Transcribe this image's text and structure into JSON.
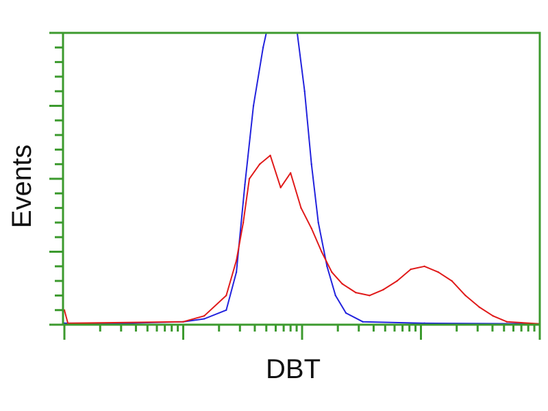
{
  "chart_data": {
    "type": "line",
    "title": "",
    "xlabel": "DBT",
    "ylabel": "Events",
    "xscale": "log",
    "xlim": [
      1,
      10000
    ],
    "ylim": [
      0,
      100
    ],
    "grid": false,
    "frame_color": "#3c9a2e",
    "series": [
      {
        "color": "#2222dd",
        "x": [
          1,
          3.1,
          10,
          15,
          23,
          28,
          33,
          39,
          47,
          50,
          91,
          105,
          120,
          137,
          162,
          191,
          234,
          324,
          1070,
          10000
        ],
        "y": [
          0.5,
          0.5,
          1,
          2,
          5,
          18,
          48,
          75,
          95,
          100,
          100,
          80,
          55,
          35,
          20,
          10,
          4,
          1,
          0.5,
          0.3
        ]
      },
      {
        "color": "#e01a1a",
        "x": [
          1,
          1.07,
          10,
          15,
          23,
          28,
          32,
          36,
          44,
          54,
          66,
          80,
          98,
          120,
          146,
          178,
          218,
          283,
          369,
          482,
          630,
          822,
          1070,
          1400,
          1820,
          2370,
          3100,
          4040,
          5280,
          10000
        ],
        "y": [
          5,
          0.5,
          1,
          3,
          10,
          22,
          35,
          50,
          55,
          58,
          47,
          52,
          40,
          33,
          25,
          18,
          14,
          11,
          10,
          12,
          15,
          19,
          20,
          18,
          15,
          10,
          6,
          3,
          1,
          0.3
        ]
      }
    ]
  }
}
